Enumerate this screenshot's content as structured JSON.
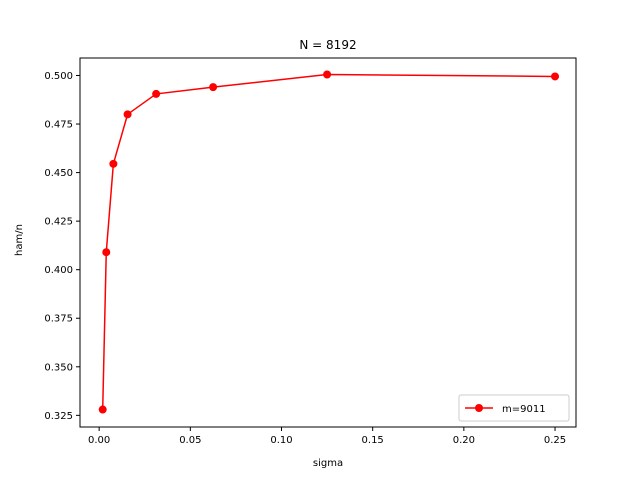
{
  "chart_data": {
    "type": "line",
    "title": "N = 8192",
    "xlabel": "sigma",
    "ylabel": "ham/n",
    "xlim": [
      -0.0105,
      0.2615
    ],
    "ylim": [
      0.319,
      0.509
    ],
    "xticks": [
      0.0,
      0.05,
      0.1,
      0.15,
      0.2,
      0.25
    ],
    "xtick_labels": [
      "0.00",
      "0.05",
      "0.10",
      "0.15",
      "0.20",
      "0.25"
    ],
    "yticks": [
      0.325,
      0.35,
      0.375,
      0.4,
      0.425,
      0.45,
      0.475,
      0.5
    ],
    "ytick_labels": [
      "0.325",
      "0.350",
      "0.375",
      "0.400",
      "0.425",
      "0.450",
      "0.475",
      "0.500"
    ],
    "grid": false,
    "legend_position": "bottom-right",
    "series": [
      {
        "name": "m=9011",
        "color": "#ff0000",
        "marker": "circle",
        "x": [
          0.00195,
          0.0039,
          0.0078,
          0.0156,
          0.03125,
          0.0625,
          0.125,
          0.25
        ],
        "y": [
          0.328,
          0.409,
          0.4545,
          0.48,
          0.4905,
          0.494,
          0.5005,
          0.4995
        ]
      }
    ]
  }
}
